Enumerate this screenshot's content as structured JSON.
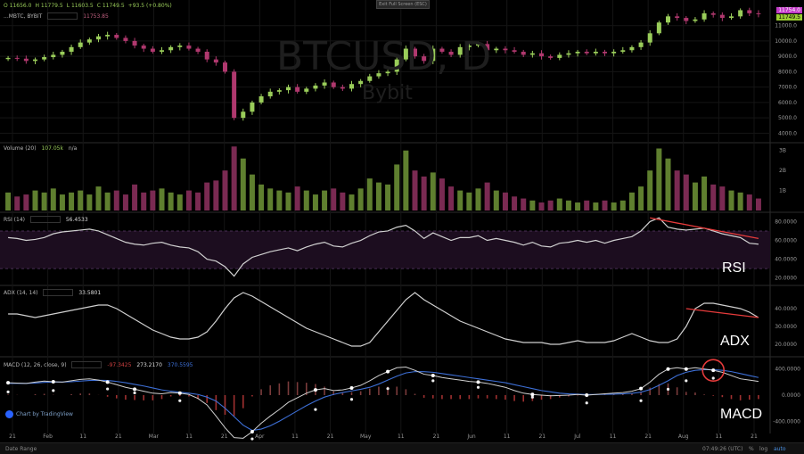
{
  "header": {
    "ohlc_line": [
      "O 11656.0",
      "H 11779.5",
      "L 11603.5",
      "C 11749.5",
      "+93.5 (+0.80%)"
    ],
    "symbol_line": "...MBTC, BYBIT",
    "symbol_value": "11753.85",
    "exit_button": "Exit Full Screen (ESC)"
  },
  "watermark": {
    "symbol": "BTCUSD, D",
    "exchange": "Bybit"
  },
  "price_tags": {
    "upper": "11754.0",
    "lower": "11749.5"
  },
  "panes": {
    "volume": {
      "legend": "Volume (20)",
      "value": "107.05k",
      "extra": "n/a"
    },
    "rsi": {
      "legend": "RSI (14)",
      "value": "56.4533"
    },
    "adx": {
      "legend": "ADX (14, 14)",
      "value": "33.5801"
    },
    "macd": {
      "legend": "MACD (12, 26, close, 9)",
      "v1": "-97.3425",
      "v2": "273.2170",
      "v3": "370.5595"
    }
  },
  "annotations": {
    "rsi": "RSI",
    "adx": "ADX",
    "macd": "MACD"
  },
  "branding": {
    "tv": "Chart by TradingView"
  },
  "bottom_bar": {
    "left": "Date Range",
    "time": "07:49:26 (UTC)",
    "pct": "%",
    "log": "log",
    "auto": "auto"
  },
  "colors": {
    "up": "#9acd5a",
    "down": "#b0386e",
    "line": "#d0d0d0",
    "macd_signal": "#3d6fd6",
    "trend": "#e63b3b",
    "rsi_band": "#1c0d1f"
  },
  "chart_data": [
    {
      "type": "candlestick",
      "name": "price",
      "y_ticks": [
        4000,
        5000,
        6000,
        7000,
        8000,
        9000,
        10000,
        11000
      ],
      "ylim": [
        3500,
        12200
      ],
      "close": [
        8900,
        8850,
        8700,
        8800,
        8950,
        9100,
        9300,
        9600,
        9900,
        10100,
        10300,
        10400,
        10200,
        10000,
        9700,
        9500,
        9300,
        9400,
        9600,
        9700,
        9500,
        9300,
        8800,
        8600,
        8000,
        5000,
        5400,
        6000,
        6400,
        6700,
        6800,
        7000,
        6700,
        6900,
        7100,
        7300,
        7000,
        6900,
        7200,
        7400,
        7700,
        7900,
        8000,
        8800,
        9500,
        9000,
        8700,
        9500,
        9300,
        9100,
        9600,
        9700,
        9800,
        9400,
        9500,
        9400,
        9300,
        9100,
        9200,
        9000,
        8900,
        9100,
        9200,
        9300,
        9200,
        9300,
        9200,
        9300,
        9400,
        9600,
        9900,
        10500,
        11200,
        11600,
        11500,
        11300,
        11400,
        11800,
        11700,
        11500,
        11600,
        12000,
        11800,
        11750
      ],
      "x_ticks": [
        "21",
        "Feb",
        "11",
        "21",
        "Mar",
        "11",
        "21",
        "Apr",
        "11",
        "21",
        "May",
        "11",
        "21",
        "Jun",
        "11",
        "21",
        "Jul",
        "11",
        "21",
        "Aug",
        "11",
        "21"
      ]
    },
    {
      "type": "bar",
      "name": "volume",
      "y_ticks": [
        "1B",
        "2B",
        "3B"
      ],
      "ylim": [
        0,
        3.3
      ],
      "values": [
        0.9,
        0.7,
        0.8,
        1.0,
        0.9,
        1.1,
        0.8,
        0.9,
        1.0,
        0.8,
        1.2,
        0.9,
        1.0,
        0.8,
        1.3,
        0.9,
        1.0,
        1.1,
        0.9,
        0.8,
        1.0,
        0.9,
        1.4,
        1.5,
        2.0,
        3.2,
        2.6,
        1.8,
        1.3,
        1.1,
        1.0,
        0.9,
        1.2,
        1.0,
        0.8,
        1.0,
        1.1,
        0.9,
        0.8,
        1.1,
        1.6,
        1.4,
        1.3,
        2.3,
        3.0,
        2.0,
        1.7,
        1.9,
        1.6,
        1.2,
        1.0,
        0.9,
        1.1,
        1.4,
        1.0,
        0.9,
        0.7,
        0.6,
        0.5,
        0.4,
        0.5,
        0.6,
        0.5,
        0.4,
        0.5,
        0.4,
        0.5,
        0.4,
        0.5,
        0.9,
        1.2,
        2.0,
        3.1,
        2.6,
        2.0,
        1.8,
        1.4,
        1.7,
        1.3,
        1.2,
        1.0,
        0.9,
        0.8,
        0.6
      ]
    },
    {
      "type": "line",
      "name": "rsi",
      "y_ticks": [
        20,
        40,
        60,
        80
      ],
      "ylim": [
        14,
        88
      ],
      "band": [
        30,
        70
      ],
      "values": [
        63,
        62,
        60,
        61,
        63,
        67,
        69,
        70,
        71,
        72,
        70,
        66,
        62,
        58,
        56,
        55,
        57,
        58,
        55,
        53,
        52,
        48,
        40,
        38,
        32,
        22,
        35,
        42,
        45,
        48,
        50,
        52,
        49,
        53,
        56,
        58,
        54,
        53,
        57,
        60,
        65,
        69,
        70,
        74,
        76,
        70,
        62,
        68,
        64,
        60,
        63,
        63,
        65,
        60,
        62,
        60,
        58,
        55,
        58,
        54,
        53,
        57,
        58,
        60,
        58,
        60,
        57,
        60,
        62,
        64,
        70,
        80,
        84,
        74,
        72,
        71,
        72,
        73,
        70,
        67,
        65,
        63,
        57,
        56
      ],
      "trendline": [
        [
          71,
          84
        ],
        [
          83,
          62
        ]
      ]
    },
    {
      "type": "line",
      "name": "adx",
      "y_ticks": [
        20,
        30,
        40
      ],
      "ylim": [
        14,
        52
      ],
      "values": [
        37,
        37,
        36,
        35,
        36,
        37,
        38,
        39,
        40,
        41,
        42,
        42,
        40,
        37,
        34,
        31,
        28,
        26,
        24,
        23,
        23,
        24,
        27,
        33,
        40,
        46,
        49,
        47,
        44,
        41,
        38,
        35,
        32,
        29,
        27,
        25,
        23,
        21,
        19,
        19,
        21,
        27,
        33,
        39,
        45,
        49,
        45,
        42,
        39,
        36,
        33,
        31,
        29,
        27,
        25,
        23,
        22,
        21,
        21,
        21,
        20,
        20,
        21,
        22,
        21,
        21,
        21,
        22,
        24,
        26,
        24,
        22,
        21,
        21,
        23,
        30,
        40,
        43,
        43,
        42,
        41,
        40,
        38,
        35
      ],
      "trendline": [
        [
          75,
          40
        ],
        [
          83,
          35
        ]
      ]
    },
    {
      "type": "line",
      "name": "macd",
      "y_ticks": [
        "400.0000",
        "0.0000",
        "-400.0000"
      ],
      "ylim": [
        -560,
        560
      ],
      "macd": [
        190,
        185,
        180,
        200,
        215,
        205,
        200,
        220,
        240,
        250,
        230,
        200,
        160,
        120,
        90,
        60,
        30,
        20,
        40,
        30,
        10,
        -50,
        -150,
        -320,
        -500,
        -650,
        -660,
        -560,
        -430,
        -320,
        -220,
        -110,
        -40,
        30,
        80,
        100,
        70,
        80,
        110,
        150,
        220,
        300,
        360,
        420,
        430,
        380,
        320,
        300,
        270,
        250,
        230,
        210,
        200,
        180,
        150,
        120,
        70,
        30,
        10,
        0,
        -10,
        -5,
        0,
        10,
        0,
        10,
        20,
        30,
        40,
        60,
        100,
        200,
        320,
        400,
        420,
        400,
        420,
        400,
        380,
        350,
        300,
        250,
        230,
        210
      ],
      "signal": [
        180,
        182,
        180,
        185,
        195,
        200,
        200,
        205,
        215,
        225,
        228,
        225,
        210,
        190,
        165,
        140,
        110,
        80,
        60,
        45,
        30,
        10,
        -30,
        -90,
        -200,
        -330,
        -460,
        -540,
        -520,
        -470,
        -400,
        -320,
        -240,
        -160,
        -90,
        -30,
        10,
        40,
        65,
        90,
        120,
        170,
        230,
        290,
        340,
        360,
        360,
        350,
        330,
        310,
        290,
        270,
        250,
        230,
        210,
        190,
        160,
        130,
        100,
        70,
        50,
        30,
        20,
        15,
        10,
        10,
        12,
        15,
        20,
        28,
        45,
        85,
        150,
        220,
        300,
        350,
        380,
        390,
        390,
        380,
        360,
        330,
        300,
        270
      ],
      "markers": [
        0,
        5,
        11,
        14,
        19,
        27,
        34,
        38,
        42,
        47,
        52,
        58,
        64,
        70,
        73,
        75,
        78
      ]
    }
  ]
}
